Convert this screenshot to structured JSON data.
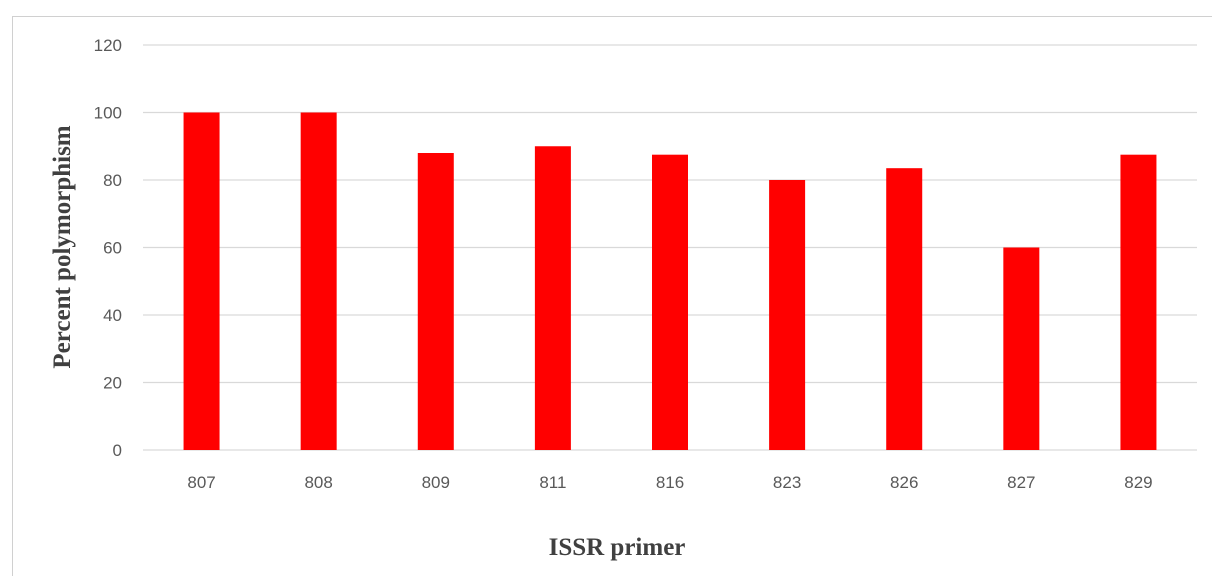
{
  "chart_data": {
    "type": "bar",
    "categories": [
      "807",
      "808",
      "809",
      "811",
      "816",
      "823",
      "826",
      "827",
      "829"
    ],
    "values": [
      100,
      100,
      88,
      90,
      87.5,
      80,
      83.5,
      60,
      87.5
    ],
    "xlabel": "ISSR primer",
    "ylabel": "Percent polymorphism",
    "ylim": [
      0,
      120
    ],
    "yticks": [
      0,
      20,
      40,
      60,
      80,
      100,
      120
    ],
    "grid": true,
    "legend": "none",
    "bar_color": "#ff0000",
    "grid_color": "#d9d9d9"
  }
}
